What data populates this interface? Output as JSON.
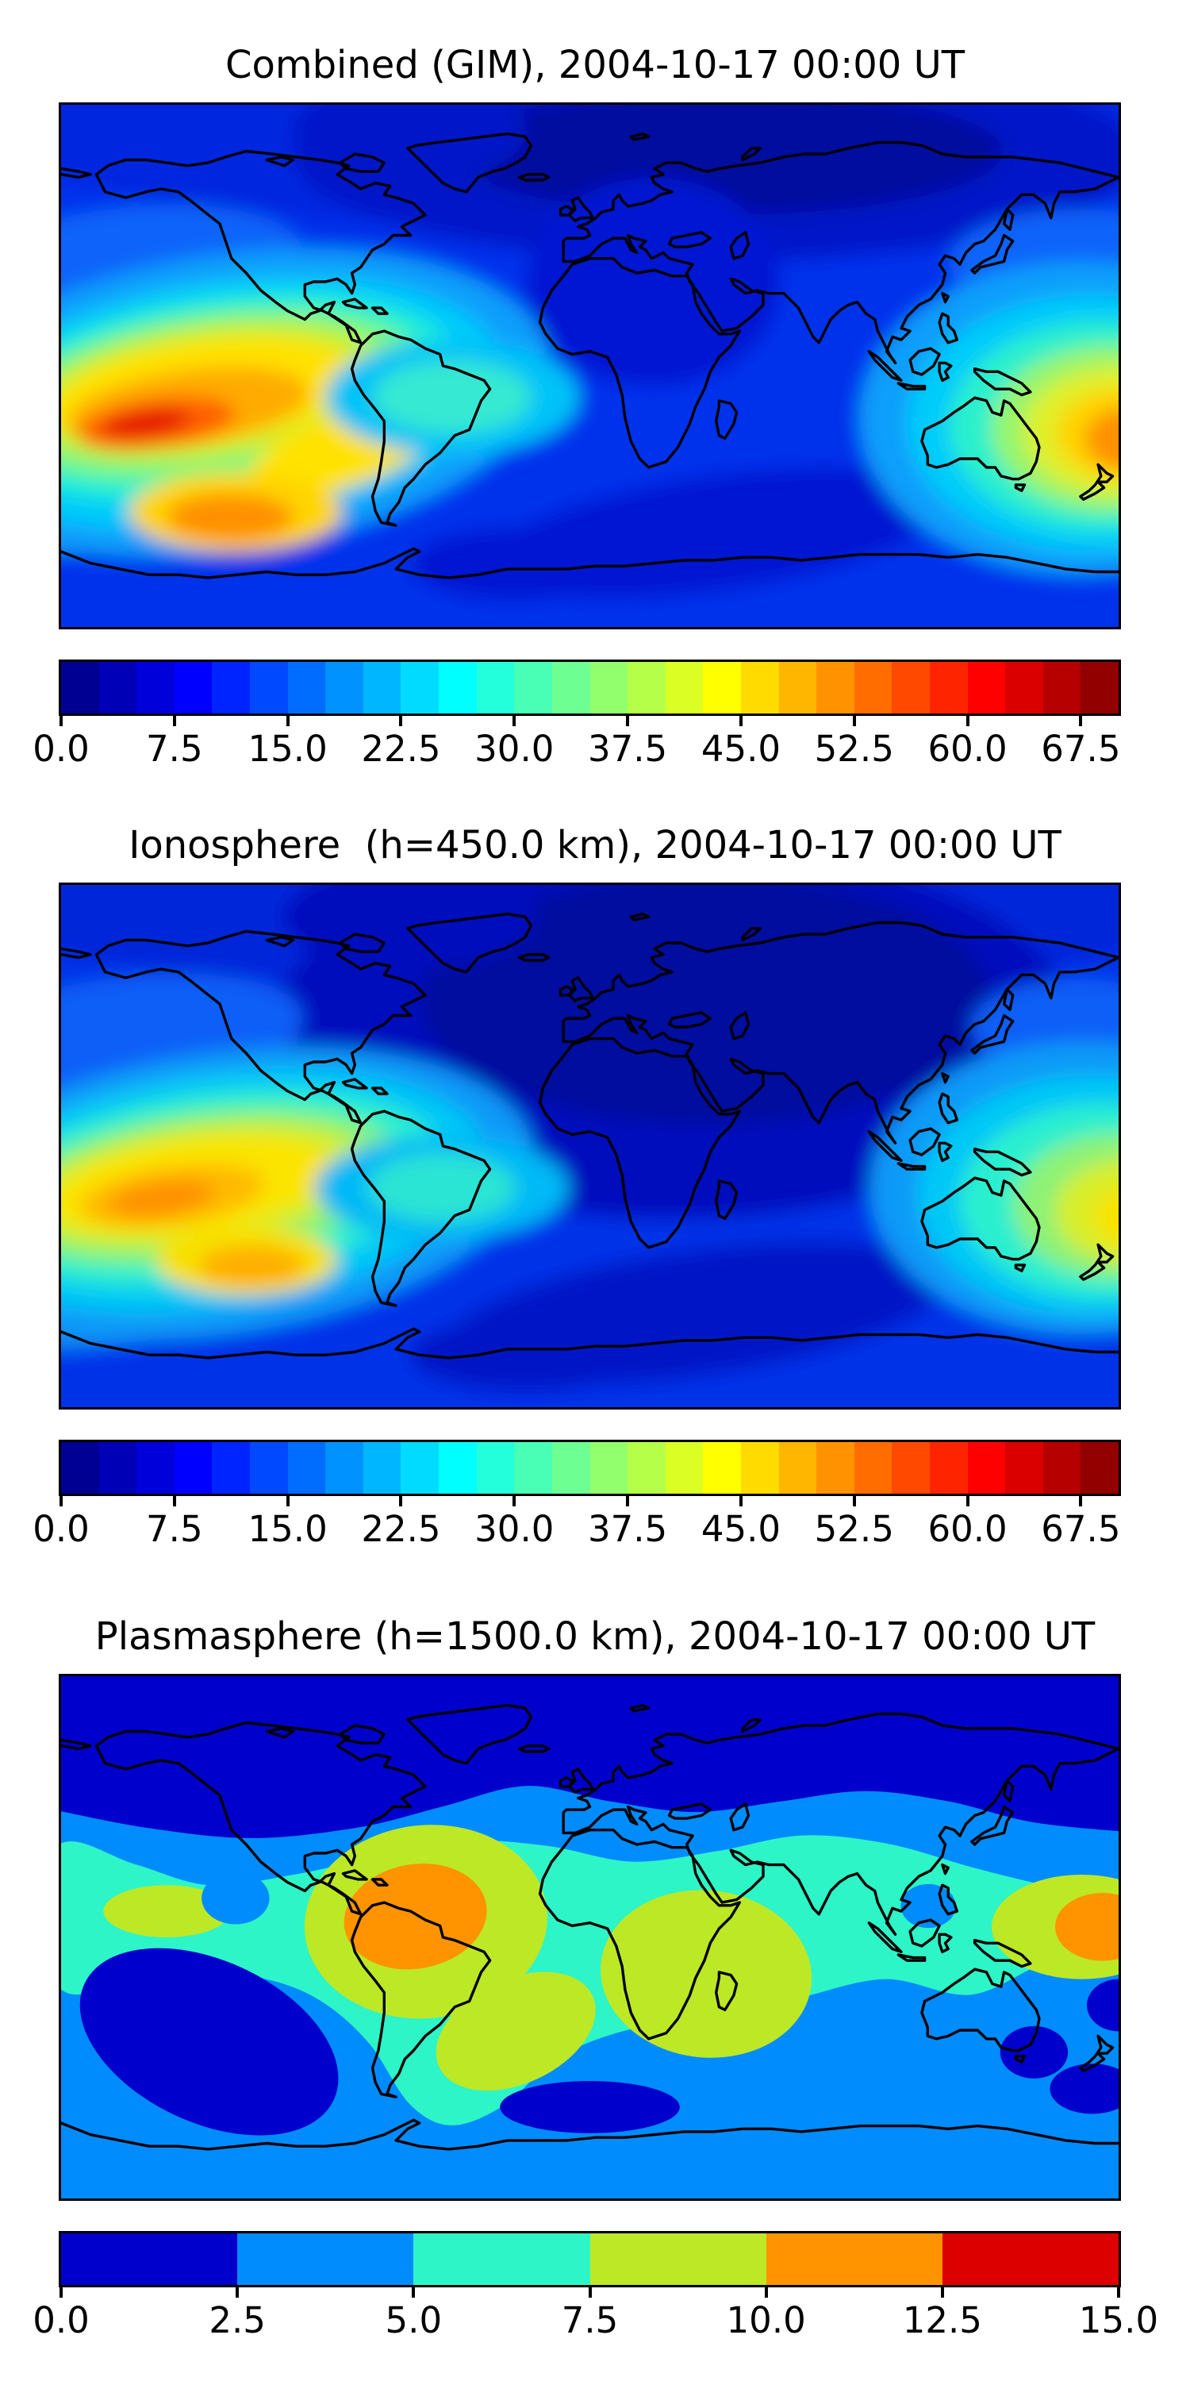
{
  "figure": {
    "background": "#ffffff",
    "text_color": "#000000",
    "projection": "equirectangular world map",
    "coastline_color": "#000000"
  },
  "panels": [
    {
      "id": "combined",
      "title": "Combined (GIM), 2004-10-17 00:00 UT",
      "colorbar": {
        "colormap": "jet",
        "n_segments": 28,
        "vmin": 0.0,
        "vmax": 70.0,
        "ticks": [
          {
            "value": 0.0,
            "label": "0.0"
          },
          {
            "value": 7.5,
            "label": "7.5"
          },
          {
            "value": 15.0,
            "label": "15.0"
          },
          {
            "value": 22.5,
            "label": "22.5"
          },
          {
            "value": 30.0,
            "label": "30.0"
          },
          {
            "value": 37.5,
            "label": "37.5"
          },
          {
            "value": 45.0,
            "label": "45.0"
          },
          {
            "value": 52.5,
            "label": "52.5"
          },
          {
            "value": 60.0,
            "label": "60.0"
          },
          {
            "value": 67.5,
            "label": "67.5"
          }
        ]
      }
    },
    {
      "id": "ionosphere",
      "title": "Ionosphere  (h=450.0 km), 2004-10-17 00:00 UT",
      "colorbar": {
        "colormap": "jet",
        "n_segments": 28,
        "vmin": 0.0,
        "vmax": 70.0,
        "ticks": [
          {
            "value": 0.0,
            "label": "0.0"
          },
          {
            "value": 7.5,
            "label": "7.5"
          },
          {
            "value": 15.0,
            "label": "15.0"
          },
          {
            "value": 22.5,
            "label": "22.5"
          },
          {
            "value": 30.0,
            "label": "30.0"
          },
          {
            "value": 37.5,
            "label": "37.5"
          },
          {
            "value": 45.0,
            "label": "45.0"
          },
          {
            "value": 52.5,
            "label": "52.5"
          },
          {
            "value": 60.0,
            "label": "60.0"
          },
          {
            "value": 67.5,
            "label": "67.5"
          }
        ]
      }
    },
    {
      "id": "plasmasphere",
      "title": "Plasmasphere (h=1500.0 km), 2004-10-17 00:00 UT",
      "colorbar": {
        "colormap": "jet",
        "n_segments": 6,
        "vmin": 0.0,
        "vmax": 15.0,
        "segment_colors": [
          "#0000cc",
          "#008cfc",
          "#2df5c8",
          "#bce826",
          "#ff9400",
          "#dc0000"
        ],
        "ticks": [
          {
            "value": 0.0,
            "label": "0.0"
          },
          {
            "value": 2.5,
            "label": "2.5"
          },
          {
            "value": 5.0,
            "label": "5.0"
          },
          {
            "value": 7.5,
            "label": "7.5"
          },
          {
            "value": 10.0,
            "label": "10.0"
          },
          {
            "value": 12.5,
            "label": "12.5"
          },
          {
            "value": 15.0,
            "label": "15.0"
          }
        ]
      }
    }
  ],
  "chart_data": [
    {
      "type": "heatmap",
      "subtype": "filled_contour_world_map",
      "title": "Combined (GIM), 2004-10-17 00:00 UT",
      "projection": "equirectangular",
      "lon_range": [
        -180,
        180
      ],
      "lat_range": [
        -90,
        90
      ],
      "colormap": "jet",
      "value_range": [
        0,
        70
      ],
      "contour_level_step": 2.5,
      "colorbar_ticks": [
        0.0,
        7.5,
        15.0,
        22.5,
        30.0,
        37.5,
        45.0,
        52.5,
        60.0,
        67.5
      ],
      "grid": false,
      "legend_position": "horizontal colorbar below map",
      "features": [
        {
          "region": "east-Pacific equatorial ionization crest (main maximum)",
          "lon": -150,
          "lat": -20,
          "approx_value": 65
        },
        {
          "region": "secondary orange lobe west of southern Chile",
          "lon": -122,
          "lat": -45,
          "approx_value": 52
        },
        {
          "region": "west-Pacific crest near date line",
          "lon": 176,
          "lat": -25,
          "approx_value": 55
        },
        {
          "region": "cyan patch over northern South America",
          "lon": -62,
          "lat": -8,
          "approx_value": 30
        },
        {
          "region": "minimum over Europe / North Atlantic / Greenland",
          "lon": 20,
          "lat": 55,
          "approx_value": 4
        },
        {
          "region": "minimum south Indian Ocean band",
          "lon": 70,
          "lat": -45,
          "approx_value": 8
        }
      ]
    },
    {
      "type": "heatmap",
      "subtype": "filled_contour_world_map",
      "title": "Ionosphere  (h=450.0 km), 2004-10-17 00:00 UT",
      "projection": "equirectangular",
      "lon_range": [
        -180,
        180
      ],
      "lat_range": [
        -90,
        90
      ],
      "colormap": "jet",
      "value_range": [
        0,
        70
      ],
      "contour_level_step": 2.5,
      "colorbar_ticks": [
        0.0,
        7.5,
        15.0,
        22.5,
        30.0,
        37.5,
        45.0,
        52.5,
        60.0,
        67.5
      ],
      "grid": false,
      "legend_position": "horizontal colorbar below map",
      "features": [
        {
          "region": "east-Pacific equatorial crest (weaker than combined map)",
          "lon": -152,
          "lat": -20,
          "approx_value": 50
        },
        {
          "region": "secondary yellow lobe south-east Pacific",
          "lon": -125,
          "lat": -42,
          "approx_value": 45
        },
        {
          "region": "west-Pacific crest near date line",
          "lon": 176,
          "lat": -23,
          "approx_value": 42
        },
        {
          "region": "broad minimum over Atlantic, Europe, Africa and Middle East",
          "lon": 20,
          "lat": 25,
          "approx_value": 4
        },
        {
          "region": "southern high-latitude minimum",
          "lon": 40,
          "lat": -60,
          "approx_value": 6
        }
      ]
    },
    {
      "type": "heatmap",
      "subtype": "filled_contour_world_map",
      "title": "Plasmasphere (h=1500.0 km), 2004-10-17 00:00 UT",
      "projection": "equirectangular",
      "lon_range": [
        -180,
        180
      ],
      "lat_range": [
        -90,
        90
      ],
      "colormap": "jet",
      "value_range": [
        0,
        15
      ],
      "contour_level_step": 2.5,
      "colorbar_ticks": [
        0.0,
        2.5,
        5.0,
        7.5,
        10.0,
        12.5,
        15.0
      ],
      "grid": false,
      "legend_position": "horizontal colorbar below map",
      "features": [
        {
          "region": "northern high-latitude minimum band (dark blue)",
          "lat_above": 40,
          "approx_value": 2
        },
        {
          "region": "equatorial turquoise belt",
          "lat": 0,
          "approx_value": 6
        },
        {
          "region": "orange maximum over northern South America",
          "lon": -62,
          "lat": 8,
          "approx_value": 13
        },
        {
          "region": "orange maximum near date line / west Pacific",
          "lon": 175,
          "lat": 2,
          "approx_value": 13
        },
        {
          "region": "yellow-green cell over Atlantic / Africa",
          "lon": 0,
          "lat": -5,
          "approx_value": 9
        },
        {
          "region": "south-east Pacific dark blue cell",
          "lon": -130,
          "lat": -40,
          "approx_value": 2
        },
        {
          "region": "south Atlantic dark blue cell",
          "lon": -45,
          "lat": -55,
          "approx_value": 2
        }
      ]
    }
  ]
}
